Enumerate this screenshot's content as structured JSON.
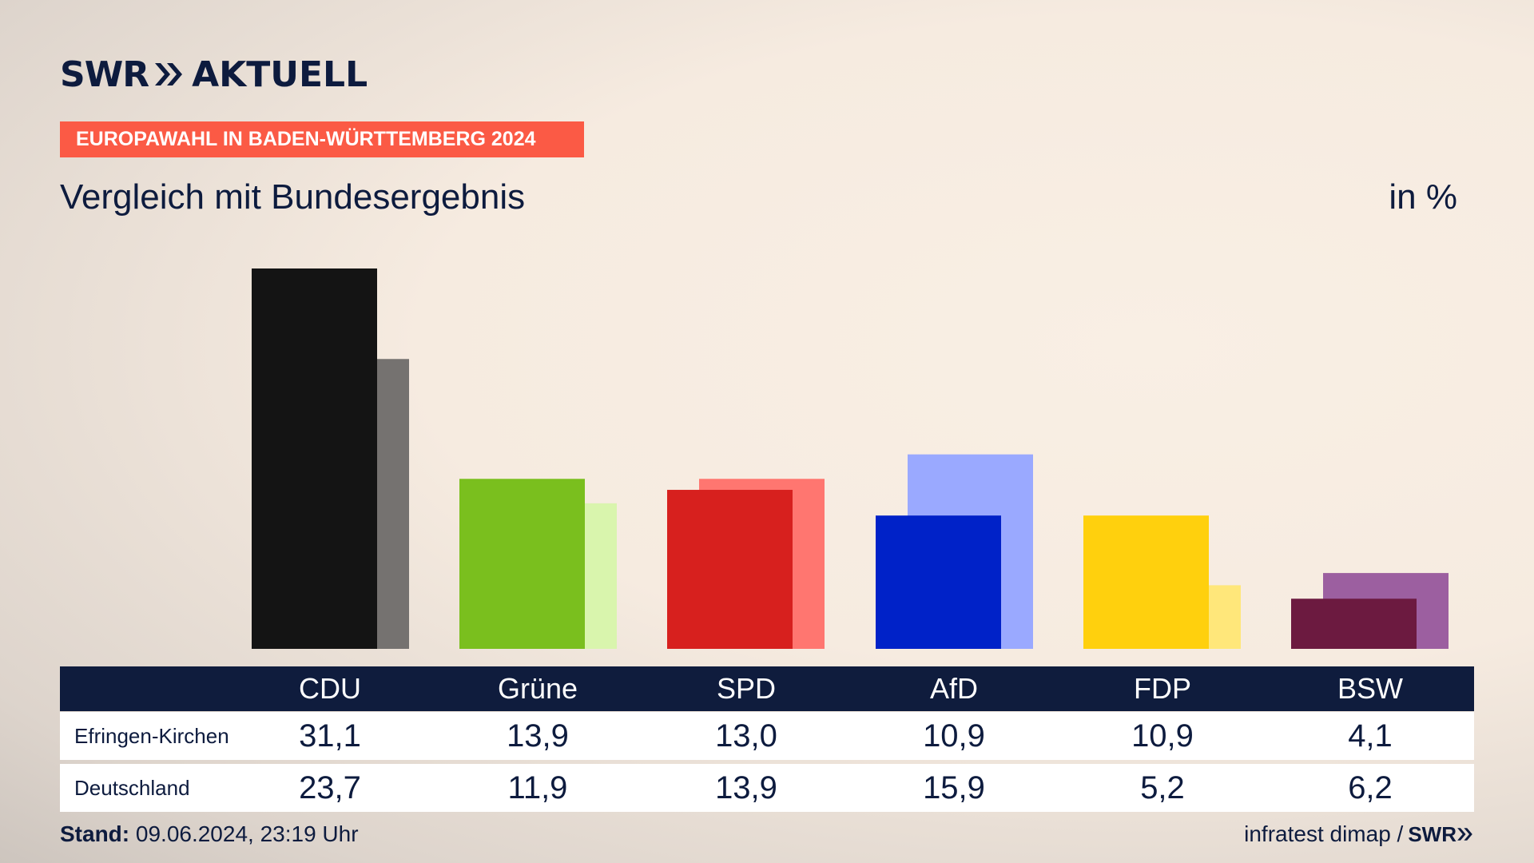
{
  "header": {
    "logo_main": "SWR",
    "logo_sub": "AKTUELL",
    "badge": "EUROPAWAHL IN BADEN-WÜRTTEMBERG 2024",
    "subtitle": "Vergleich mit Bundesergebnis",
    "unit": "in %"
  },
  "chart_data": {
    "type": "bar",
    "title": "Vergleich mit Bundesergebnis",
    "ylabel": "in %",
    "categories": [
      "CDU",
      "Grüne",
      "SPD",
      "AfD",
      "FDP",
      "BSW"
    ],
    "series": [
      {
        "name": "Efringen-Kirchen",
        "values": [
          31.1,
          13.9,
          13.0,
          10.9,
          10.9,
          4.1
        ]
      },
      {
        "name": "Deutschland",
        "values": [
          23.7,
          11.9,
          13.9,
          15.9,
          5.2,
          6.2
        ]
      }
    ],
    "colors_primary": [
      "#141414",
      "#7abf1e",
      "#d7201e",
      "#0022c8",
      "#ffd00d",
      "#6c1a40"
    ],
    "colors_secondary": [
      "#757270",
      "#d9f5ad",
      "#ff7670",
      "#9aa9ff",
      "#ffe77a",
      "#9c5fa0"
    ],
    "ylim": [
      0,
      31.1
    ],
    "grid": false,
    "legend": "table below chart"
  },
  "table": {
    "headers": [
      "CDU",
      "Grüne",
      "SPD",
      "AfD",
      "FDP",
      "BSW"
    ],
    "rows": [
      {
        "label": "Efringen-Kirchen",
        "values": [
          "31,1",
          "13,9",
          "13,0",
          "10,9",
          "10,9",
          "4,1"
        ]
      },
      {
        "label": "Deutschland",
        "values": [
          "23,7",
          "11,9",
          "13,9",
          "15,9",
          "5,2",
          "6,2"
        ]
      }
    ]
  },
  "footer": {
    "stand_label": "Stand:",
    "stand_value": "09.06.2024, 23:19 Uhr",
    "source": "infratest dimap /",
    "source_logo": "SWR"
  }
}
